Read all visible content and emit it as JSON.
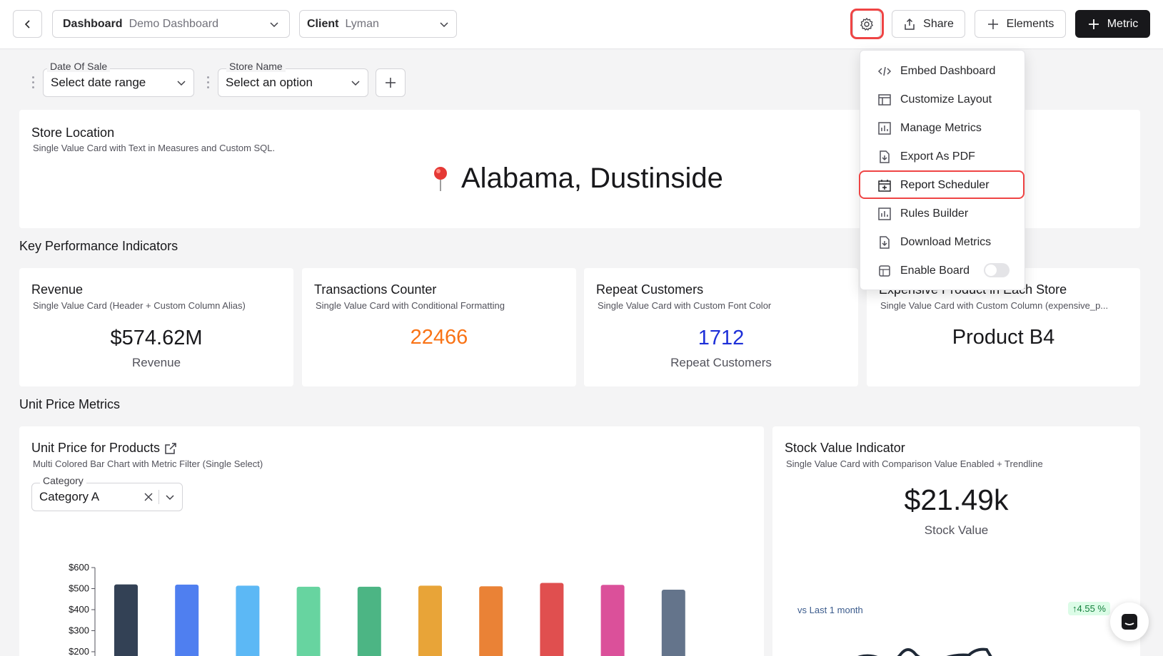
{
  "header": {
    "dashboard_key": "Dashboard",
    "dashboard_value": "Demo Dashboard",
    "client_key": "Client",
    "client_value": "Lyman",
    "share_label": "Share",
    "elements_label": "Elements",
    "metric_label": "Metric"
  },
  "filters": [
    {
      "label": "Date Of Sale",
      "value": "Select date range"
    },
    {
      "label": "Store Name",
      "value": "Select an option"
    }
  ],
  "store_location": {
    "title": "Store Location",
    "subtitle": "Single Value Card with Text in Measures and Custom SQL.",
    "value": "Alabama, Dustinside"
  },
  "kpi": {
    "section_title": "Key Performance Indicators",
    "cards": [
      {
        "title": "Revenue",
        "subtitle": "Single Value Card (Header + Custom Column Alias)",
        "value": "$574.62M",
        "label": "Revenue",
        "color": "#18181b"
      },
      {
        "title": "Transactions Counter",
        "subtitle": "Single Value Card with Conditional Formatting",
        "value": "22466",
        "label": "",
        "color": "#f97316"
      },
      {
        "title": "Repeat Customers",
        "subtitle": "Single Value Card with Custom Font Color",
        "value": "1712",
        "label": "Repeat Customers",
        "color": "#1d2fd8"
      },
      {
        "title": "Expensive Product in Each Store",
        "subtitle": "Single Value Card with Custom Column (expensive_p...",
        "value": "Product B4",
        "label": "",
        "color": "#18181b"
      }
    ]
  },
  "unit_price": {
    "section_title": "Unit Price Metrics",
    "title": "Unit Price for Products",
    "subtitle": "Multi Colored Bar Chart with Metric Filter (Single Select)",
    "filter_label": "Category",
    "filter_value": "Category A"
  },
  "stock": {
    "title": "Stock Value Indicator",
    "subtitle": "Single Value Card with Comparison Value Enabled + Trendline",
    "value": "$21.49k",
    "label": "Stock Value",
    "comparison_text": "vs Last 1 month",
    "change": "↑4.55 %"
  },
  "menu": {
    "items": [
      {
        "label": "Embed Dashboard",
        "icon": "code-icon"
      },
      {
        "label": "Customize Layout",
        "icon": "layout-icon"
      },
      {
        "label": "Manage Metrics",
        "icon": "chart-icon"
      },
      {
        "label": "Export As PDF",
        "icon": "file-download-icon"
      },
      {
        "label": "Report Scheduler",
        "icon": "calendar-plus-icon"
      },
      {
        "label": "Rules Builder",
        "icon": "chart-icon"
      },
      {
        "label": "Download Metrics",
        "icon": "file-download-icon"
      },
      {
        "label": "Enable Board",
        "icon": "board-icon"
      }
    ]
  },
  "chart_data": {
    "type": "bar",
    "title": "Unit Price for Products",
    "categories": [
      "",
      "",
      "",
      "",
      "",
      "",
      "",
      "",
      "",
      ""
    ],
    "values": [
      520,
      519,
      514,
      509,
      509,
      514,
      511,
      527,
      518,
      495
    ],
    "colors": [
      "#334155",
      "#4f7ff0",
      "#5cb8f5",
      "#67d4a0",
      "#4cb584",
      "#e8a438",
      "#ea8236",
      "#e04f4f",
      "#db509a",
      "#64748b"
    ],
    "y_ticks": [
      "$600",
      "$500",
      "$400",
      "$300",
      "$200"
    ],
    "ylim": [
      200,
      600
    ]
  }
}
